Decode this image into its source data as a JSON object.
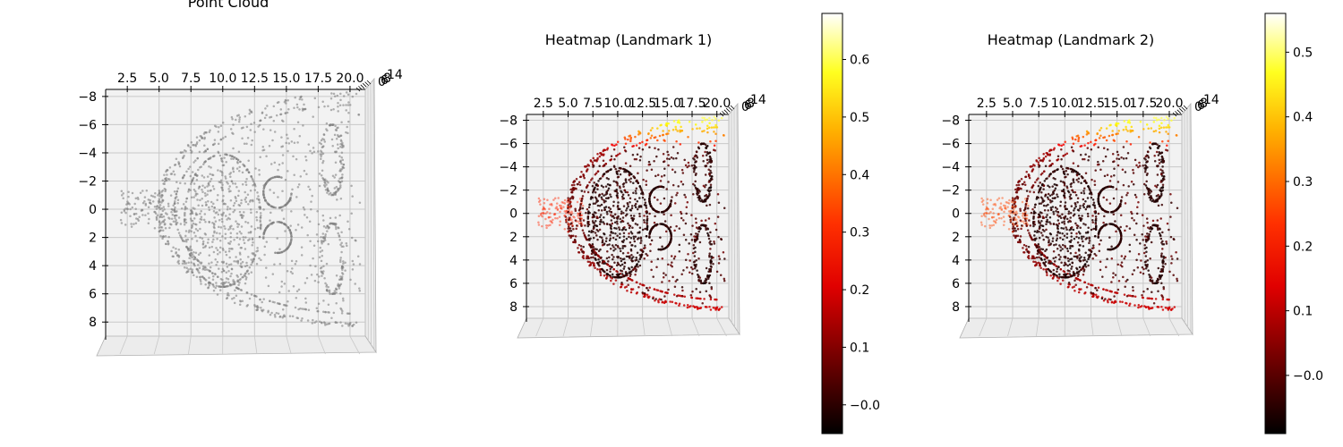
{
  "chart_data": [
    {
      "type": "scatter",
      "title": "Point Cloud",
      "projection": "3d-top-down",
      "point_color": "#808080",
      "xlim": [
        0.8,
        21.2
      ],
      "ylim": [
        -8.5,
        9.0
      ],
      "x_ticks": [
        "2.5",
        "5.0",
        "7.5",
        "10.0",
        "12.5",
        "15.0",
        "17.5",
        "20.0"
      ],
      "y_ticks": [
        "−8",
        "−6",
        "−4",
        "−2",
        "0",
        "2",
        "4",
        "6",
        "8"
      ],
      "z_ticks": [
        "0",
        "6",
        "8",
        "14"
      ],
      "grid": true
    },
    {
      "type": "scatter",
      "title": "Heatmap (Landmark 1)",
      "projection": "3d-top-down",
      "colormap": "hot",
      "xlim": [
        0.8,
        21.2
      ],
      "ylim": [
        -8.5,
        9.0
      ],
      "x_ticks": [
        "2.5",
        "5.0",
        "7.5",
        "10.0",
        "12.5",
        "15.0",
        "17.5",
        "20.0"
      ],
      "y_ticks": [
        "−8",
        "−6",
        "−4",
        "−2",
        "0",
        "2",
        "4",
        "6",
        "8"
      ],
      "z_ticks": [
        "0",
        "6",
        "8",
        "14"
      ],
      "grid": true,
      "colorbar": {
        "range": [
          -0.05,
          0.68
        ],
        "ticks": [
          -0.0,
          0.1,
          0.2,
          0.3,
          0.4,
          0.5,
          0.6
        ],
        "tick_labels": [
          "−0.0",
          "0.1",
          "0.2",
          "0.3",
          "0.4",
          "0.5",
          "0.6"
        ]
      }
    },
    {
      "type": "scatter",
      "title": "Heatmap (Landmark 2)",
      "projection": "3d-top-down",
      "colormap": "hot",
      "xlim": [
        0.8,
        21.2
      ],
      "ylim": [
        -8.5,
        9.0
      ],
      "x_ticks": [
        "2.5",
        "5.0",
        "7.5",
        "10.0",
        "12.5",
        "15.0",
        "17.5",
        "20.0"
      ],
      "y_ticks": [
        "−8",
        "−6",
        "−4",
        "−2",
        "0",
        "2",
        "4",
        "6",
        "8"
      ],
      "z_ticks": [
        "0",
        "6",
        "8",
        "14"
      ],
      "grid": true,
      "colorbar": {
        "range": [
          -0.09,
          0.56
        ],
        "ticks": [
          -0.0,
          0.1,
          0.2,
          0.3,
          0.4,
          0.5
        ],
        "tick_labels": [
          "−0.0",
          "0.1",
          "0.2",
          "0.3",
          "0.4",
          "0.5"
        ]
      }
    }
  ]
}
